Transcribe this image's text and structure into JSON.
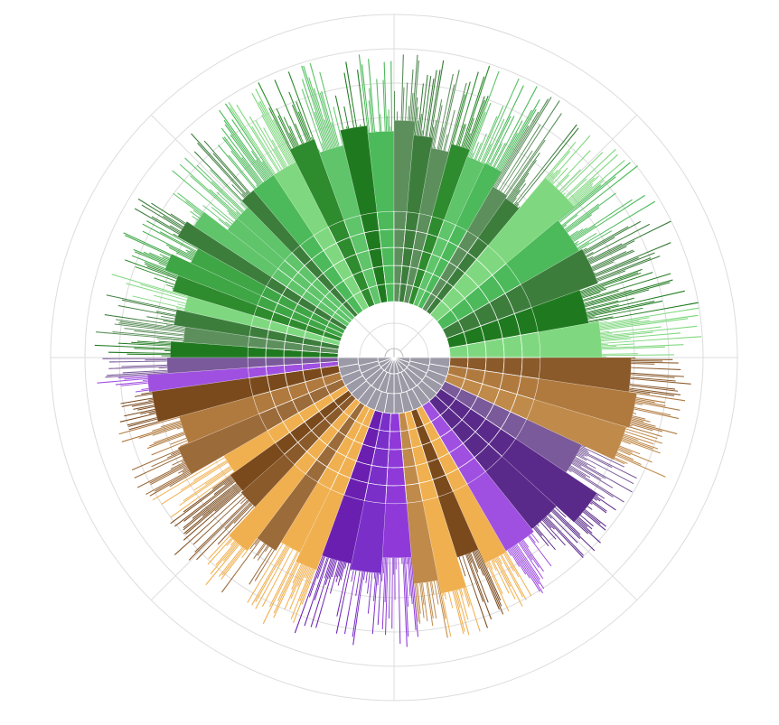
{
  "chart_data": {
    "type": "sunburst",
    "title": "",
    "grid": true,
    "legend": "none",
    "levels": 8,
    "colors": {
      "green_family": [
        "#1f7a1f",
        "#2e8b2e",
        "#3fa646",
        "#4cba5a",
        "#5fc46a",
        "#3c7d3c",
        "#5c8f5c",
        "#7fd87f"
      ],
      "brown_family": [
        "#7a4a1c",
        "#8a5a2b",
        "#9c6b3a",
        "#b07a3f",
        "#c08a4a",
        "#e8a040",
        "#f0b050"
      ],
      "purple_family": [
        "#6a1fb0",
        "#7a2fc8",
        "#8f3ad8",
        "#a050e0",
        "#5a2a8a",
        "#7a5a9a"
      ],
      "center": "#9b9aa6",
      "grid": "#dcdcdc"
    },
    "top_level": [
      {
        "group": "green",
        "share": 0.5
      },
      {
        "group": "brown",
        "share": 0.31
      },
      {
        "group": "purple",
        "share": 0.19
      }
    ]
  }
}
